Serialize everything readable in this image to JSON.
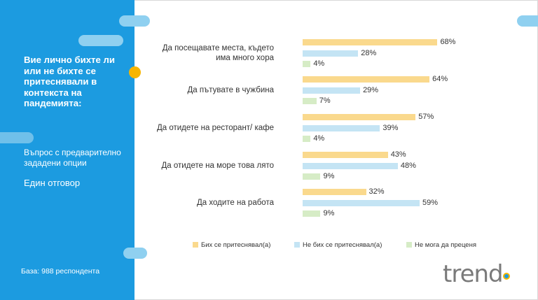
{
  "sidebar": {
    "question": "Вие лично бихте ли или не бихте се притеснявали в контекста на пандемията:",
    "question_type": "Въпрос с предварително зададени опции",
    "answer_type": "Един отговор",
    "base": "База: 988 респондента"
  },
  "logo": {
    "text": "trend"
  },
  "colors": {
    "accent": "#1c9be0",
    "series1": "#fad98d",
    "series2": "#c4e4f4",
    "series3": "#d6ecc6"
  },
  "chart_data": {
    "type": "bar",
    "orientation": "horizontal",
    "categories": [
      "Да посещавате места, където\nима много хора",
      "Да пътувате в чужбина",
      "Да отидете на ресторант/ кафе",
      "Да отидете на море това лято",
      "Да ходите на работа"
    ],
    "series": [
      {
        "name": "Бих се притеснявал(а)",
        "values": [
          68,
          64,
          57,
          43,
          32
        ]
      },
      {
        "name": "Не бих се притеснявал(а)",
        "values": [
          28,
          29,
          39,
          48,
          59
        ]
      },
      {
        "name": "Не мога да преценя",
        "values": [
          4,
          7,
          4,
          9,
          9
        ]
      }
    ],
    "value_suffix": "%",
    "legend": "bottom"
  }
}
